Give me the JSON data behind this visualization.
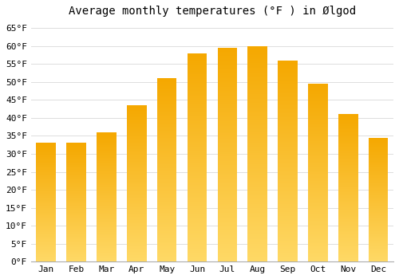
{
  "title": "Average monthly temperatures (°F ) in Ølgod",
  "months": [
    "Jan",
    "Feb",
    "Mar",
    "Apr",
    "May",
    "Jun",
    "Jul",
    "Aug",
    "Sep",
    "Oct",
    "Nov",
    "Dec"
  ],
  "values": [
    33,
    33,
    36,
    43.5,
    51,
    58,
    59.5,
    60,
    56,
    49.5,
    41,
    34.5
  ],
  "bar_color_top": "#F5A800",
  "bar_color_bottom": "#FFD966",
  "ylim": [
    0,
    67
  ],
  "yticks": [
    0,
    5,
    10,
    15,
    20,
    25,
    30,
    35,
    40,
    45,
    50,
    55,
    60,
    65
  ],
  "ytick_labels": [
    "0°F",
    "5°F",
    "10°F",
    "15°F",
    "20°F",
    "25°F",
    "30°F",
    "35°F",
    "40°F",
    "45°F",
    "50°F",
    "55°F",
    "60°F",
    "65°F"
  ],
  "background_color": "#ffffff",
  "grid_color": "#dddddd",
  "title_fontsize": 10,
  "tick_fontsize": 8,
  "bar_width": 0.65,
  "font_family": "monospace"
}
